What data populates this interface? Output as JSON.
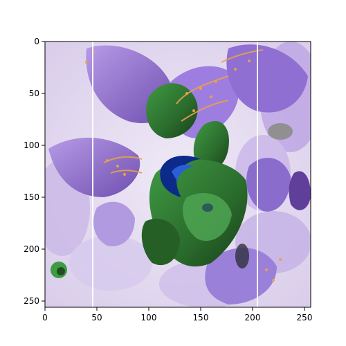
{
  "chart_data": {
    "type": "image",
    "title": "",
    "xlabel": "",
    "ylabel": "",
    "xlim": [
      0,
      256
    ],
    "ylim": [
      256,
      0
    ],
    "xticks": [
      0,
      50,
      100,
      150,
      200,
      250
    ],
    "yticks": [
      0,
      50,
      100,
      150,
      200,
      250
    ],
    "xtick_labels": [
      "0",
      "50",
      "100",
      "150",
      "200",
      "250"
    ],
    "ytick_labels": [
      "0",
      "50",
      "100",
      "150",
      "200",
      "250"
    ],
    "colors": {
      "background_lavender": "#e4dcef",
      "leaf_purple": "#9a78d6",
      "leaf_purple_dark": "#6f4fb0",
      "center_green": "#2f7a2f",
      "center_green_dark": "#1f4f1f",
      "accent_blue": "#0b2a8a",
      "vein_orange": "#e7a24a",
      "stripe_white": "#ffffff"
    }
  }
}
